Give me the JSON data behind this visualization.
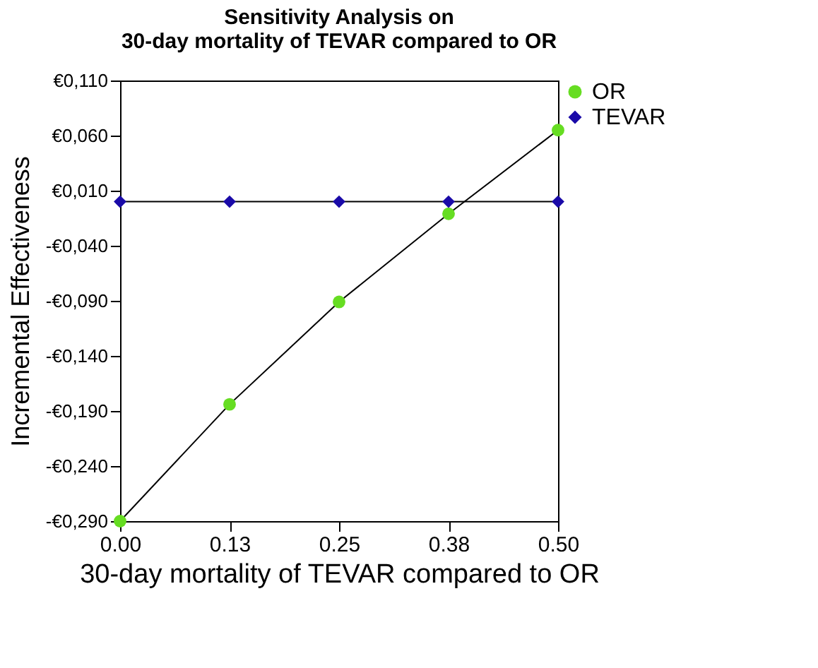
{
  "chart_data": {
    "type": "line",
    "title": [
      "Sensitivity Analysis on",
      "30-day mortality of TEVAR compared to OR"
    ],
    "xlabel": "30-day mortality of TEVAR compared to OR",
    "ylabel": "Incremental Effectiveness",
    "x": [
      0,
      0.125,
      0.25,
      0.375,
      0.5
    ],
    "series": [
      {
        "name": "OR",
        "color": "#66dd22",
        "marker": "circle",
        "values": [
          -0.29,
          -0.184,
          -0.091,
          -0.011,
          0.065
        ]
      },
      {
        "name": "TEVAR",
        "color": "#1a0aa8",
        "marker": "diamond",
        "values": [
          0,
          0,
          0,
          0,
          0
        ]
      }
    ],
    "xlim": [
      0,
      0.5
    ],
    "xticks": [
      "0.00",
      {
        "value": 0.125,
        "label": "0.13"
      },
      {
        "value": 0.25,
        "label": "0.25"
      },
      {
        "value": 0.375,
        "label": "0.38"
      },
      {
        "value": 0.5,
        "label": "0.50"
      }
    ],
    "ylim": [
      -0.29,
      0.11
    ],
    "yticks": [
      {
        "value": 0.11,
        "label": "€0,110"
      },
      {
        "value": 0.06,
        "label": "€0,060"
      },
      {
        "value": 0.01,
        "label": "€0,010"
      },
      {
        "value": -0.04,
        "label": "-€0,040"
      },
      {
        "value": -0.09,
        "label": "-€0,090"
      },
      {
        "value": -0.14,
        "label": "-€0,140"
      },
      {
        "value": -0.19,
        "label": "-€0,190"
      },
      {
        "value": -0.24,
        "label": "-€0,240"
      },
      {
        "value": -0.29,
        "label": "-€0,290"
      }
    ],
    "grid": false,
    "legend": "top right",
    "line_style": "solid"
  }
}
